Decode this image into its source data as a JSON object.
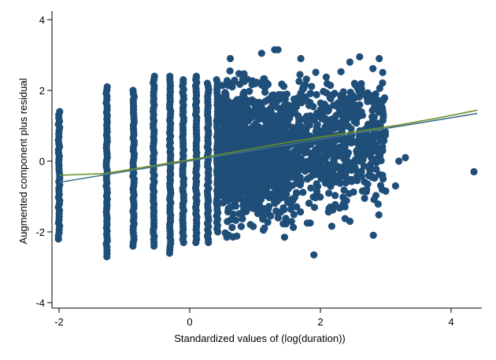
{
  "chart_data": {
    "type": "scatter",
    "title": "",
    "xlabel": "Standardized values of (log(duration))",
    "ylabel": "Augmented component plus residual",
    "xlim": [
      -2.1,
      4.45
    ],
    "ylim": [
      -4.1,
      4.2
    ],
    "xticks": [
      -2,
      0,
      2,
      4
    ],
    "yticks": [
      -4,
      -2,
      0,
      2,
      4
    ],
    "grid": false,
    "legend": "none",
    "marker_color": "#1f4e79",
    "columns": {
      "x_levels": [
        -2.0,
        -1.27,
        -0.86,
        -0.55,
        -0.3,
        -0.1,
        0.1,
        0.28,
        0.42
      ],
      "y_min": [
        -2.2,
        -2.7,
        -2.4,
        -2.4,
        -2.6,
        -2.3,
        -2.3,
        -2.3,
        -2.0
      ],
      "y_max": [
        1.4,
        2.1,
        2.0,
        2.4,
        2.4,
        2.3,
        2.4,
        2.2,
        2.3
      ]
    },
    "cloud": {
      "x_range": [
        0.5,
        3.0
      ],
      "y_center": 0.4,
      "y_spread": 0.9
    },
    "outliers": [
      {
        "x": 4.35,
        "y": -0.3
      },
      {
        "x": 3.3,
        "y": 0.1
      },
      {
        "x": 3.2,
        "y": 0.0
      },
      {
        "x": 3.15,
        "y": -0.7
      },
      {
        "x": 2.95,
        "y": -0.4
      },
      {
        "x": 1.9,
        "y": -2.65
      },
      {
        "x": 1.35,
        "y": 3.15
      },
      {
        "x": 1.3,
        "y": 3.15
      },
      {
        "x": 1.1,
        "y": 3.05
      },
      {
        "x": 0.62,
        "y": 2.9
      },
      {
        "x": 2.6,
        "y": 2.95
      },
      {
        "x": 2.9,
        "y": 2.9
      },
      {
        "x": 1.7,
        "y": 2.9
      },
      {
        "x": 2.45,
        "y": 2.8
      },
      {
        "x": 0.1,
        "y": 2.35
      },
      {
        "x": 1.45,
        "y": -2.15
      },
      {
        "x": 0.6,
        "y": -2.1
      },
      {
        "x": 1.8,
        "y": -1.75
      },
      {
        "x": 2.15,
        "y": -1.3
      },
      {
        "x": 2.35,
        "y": -1.2
      }
    ],
    "series": [
      {
        "kind": "linear-fit",
        "color": "#3f6f8f",
        "points": [
          {
            "x": -2.0,
            "y": -0.6
          },
          {
            "x": 4.4,
            "y": 1.35
          }
        ]
      },
      {
        "kind": "lowess",
        "color": "#6b8e23",
        "points": [
          {
            "x": -2.0,
            "y": -0.4
          },
          {
            "x": -1.3,
            "y": -0.35
          },
          {
            "x": -0.8,
            "y": -0.2
          },
          {
            "x": -0.3,
            "y": -0.05
          },
          {
            "x": 0.2,
            "y": 0.1
          },
          {
            "x": 0.8,
            "y": 0.3
          },
          {
            "x": 1.4,
            "y": 0.5
          },
          {
            "x": 2.0,
            "y": 0.68
          },
          {
            "x": 2.6,
            "y": 0.85
          },
          {
            "x": 3.2,
            "y": 1.02
          },
          {
            "x": 3.8,
            "y": 1.22
          },
          {
            "x": 4.4,
            "y": 1.44
          }
        ]
      }
    ]
  }
}
